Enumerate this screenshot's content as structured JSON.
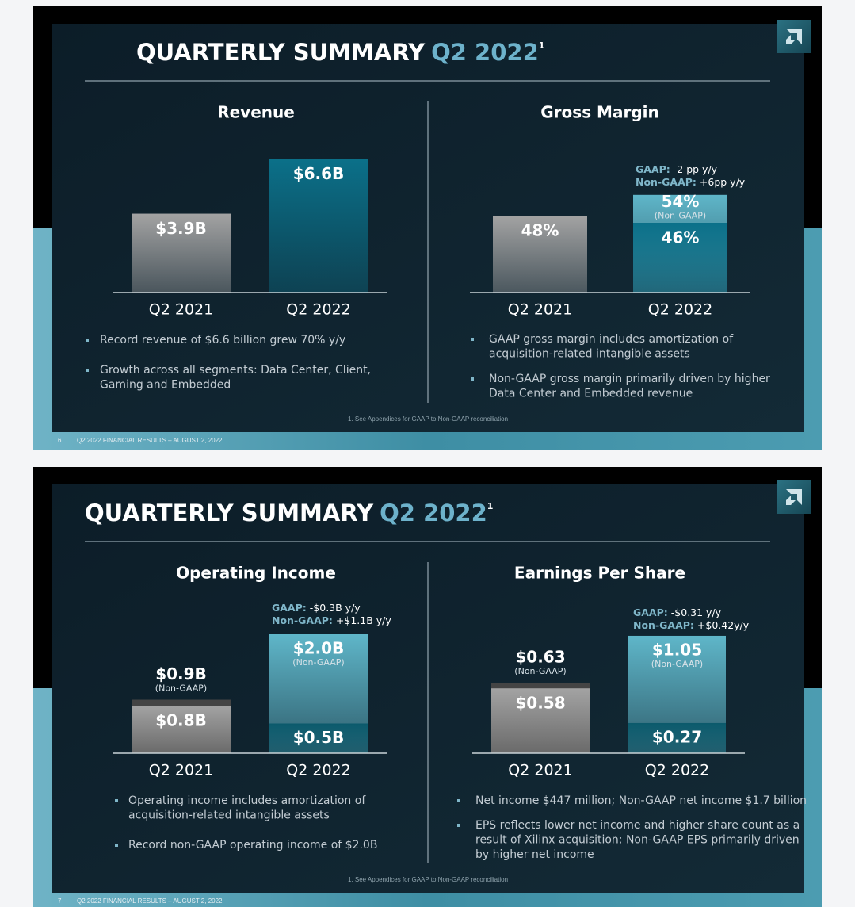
{
  "slides": [
    {
      "title": "QUARTERLY SUMMARY",
      "title_highlight": "Q2 2022",
      "title_superscript": "1",
      "footnote": "1. See Appendices for GAAP to Non-GAAP reconciliation",
      "page_number": "6",
      "footer": "Q2 2022 FINANCIAL RESULTS – AUGUST 2, 2022"
    },
    {
      "title": "QUARTERLY SUMMARY",
      "title_highlight": "Q2 2022",
      "title_superscript": "1",
      "footnote": "1. See Appendices for GAAP to Non-GAAP reconciliation",
      "page_number": "7",
      "footer": "Q2 2022 FINANCIAL RESULTS – AUGUST 2, 2022"
    }
  ],
  "chart_data": [
    {
      "type": "bar",
      "title": "Revenue",
      "categories": [
        "Q2 2021",
        "Q2 2022"
      ],
      "series": [
        {
          "values": [
            3.9,
            6.6
          ],
          "value_labels": [
            "$3.9B",
            "$6.6B"
          ],
          "colors": [
            "#a3a3a3",
            "#0b7089"
          ]
        }
      ],
      "bullets": [
        [
          "Record revenue of $6.6 billion grew 70% y/y"
        ],
        [
          "Growth across all segments: Data Center, Client,",
          "Gaming and Embedded"
        ]
      ]
    },
    {
      "type": "bar",
      "title": "Gross Margin",
      "categories": [
        "Q2 2021",
        "Q2 2022"
      ],
      "series": [
        {
          "values": [
            48,
            46
          ],
          "value_labels": [
            "48%",
            "46%"
          ],
          "colors": [
            "#a3a3a3",
            "#0b7089"
          ]
        },
        {
          "values": [
            null,
            54
          ],
          "value_labels": [
            null,
            "54%"
          ],
          "notes": [
            null,
            "(Non-GAAP)"
          ],
          "colors": [
            "#444444",
            "#5fb6c9"
          ]
        }
      ],
      "annotations": [
        {
          "key": "GAAP:",
          "text": "-2 pp y/y"
        },
        {
          "key": "Non-GAAP:",
          "text": "+6pp y/y"
        }
      ],
      "bullets": [
        [
          "GAAP gross margin includes amortization of",
          "acquisition-related intangible assets"
        ],
        [
          "Non-GAAP gross margin primarily driven by higher",
          "Data Center and Embedded revenue"
        ]
      ]
    },
    {
      "type": "bar",
      "title": "Operating Income",
      "categories": [
        "Q2 2021",
        "Q2 2022"
      ],
      "series": [
        {
          "values": [
            0.8,
            0.5
          ],
          "value_labels": [
            "$0.8B",
            "$0.5B"
          ],
          "colors": [
            "#a3a3a3",
            "#0b5a6c"
          ]
        },
        {
          "values": [
            0.9,
            2.0
          ],
          "value_labels": [
            "$0.9B",
            "$2.0B"
          ],
          "notes": [
            "(Non-GAAP)",
            "(Non-GAAP)"
          ],
          "colors": [
            "#444444",
            "#5fb6c9"
          ]
        }
      ],
      "annotations": [
        {
          "key": "GAAP:",
          "text": "-$0.3B y/y"
        },
        {
          "key": "Non-GAAP:",
          "text": "+$1.1B y/y"
        }
      ],
      "bullets": [
        [
          "Operating income includes amortization of",
          "acquisition-related intangible assets"
        ],
        [
          "Record non-GAAP operating income of $2.0B"
        ]
      ]
    },
    {
      "type": "bar",
      "title": "Earnings Per Share",
      "categories": [
        "Q2 2021",
        "Q2 2022"
      ],
      "series": [
        {
          "values": [
            0.58,
            0.27
          ],
          "value_labels": [
            "$0.58",
            "$0.27"
          ],
          "colors": [
            "#a3a3a3",
            "#0b5a6c"
          ]
        },
        {
          "values": [
            0.63,
            1.05
          ],
          "value_labels": [
            "$0.63",
            "$1.05"
          ],
          "notes": [
            "(Non-GAAP)",
            "(Non-GAAP)"
          ],
          "colors": [
            "#444444",
            "#5fb6c9"
          ]
        }
      ],
      "annotations": [
        {
          "key": "GAAP:",
          "text": "-$0.31 y/y"
        },
        {
          "key": "Non-GAAP:",
          "text": "+$0.42y/y"
        }
      ],
      "bullets": [
        [
          "Net income $447 million; Non-GAAP net income $1.7 billion"
        ],
        [
          "EPS reflects lower net income and higher share count as a",
          "result of Xilinx acquisition; Non-GAAP EPS primarily driven",
          "by higher net income"
        ]
      ]
    }
  ]
}
